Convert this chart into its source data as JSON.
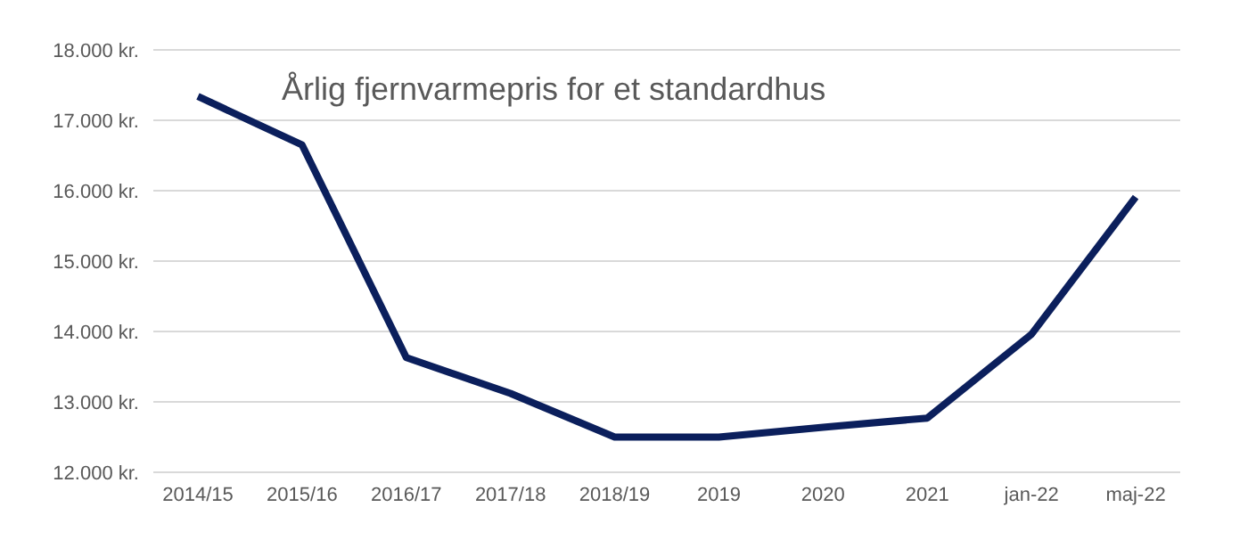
{
  "chart_data": {
    "type": "line",
    "title": "Årlig fjernvarmepris for et standardhus",
    "categories": [
      "2014/15",
      "2015/16",
      "2016/17",
      "2017/18",
      "2018/19",
      "2019",
      "2020",
      "2021",
      "jan-22",
      "maj-22"
    ],
    "series": [
      {
        "color": "#0b1f5c",
        "values": [
          17340,
          16650,
          13630,
          13120,
          12500,
          12500,
          12640,
          12770,
          13960,
          15910
        ]
      }
    ],
    "ylim": [
      12000,
      18000
    ],
    "yticks": [
      {
        "value": 12000,
        "label": "12.000 kr."
      },
      {
        "value": 13000,
        "label": "13.000 kr."
      },
      {
        "value": 14000,
        "label": "14.000 kr."
      },
      {
        "value": 15000,
        "label": "15.000 kr."
      },
      {
        "value": 16000,
        "label": "16.000 kr."
      },
      {
        "value": 17000,
        "label": "17.000 kr."
      },
      {
        "value": 18000,
        "label": "18.000 kr."
      }
    ],
    "grid": "y",
    "marker": "none",
    "line_style": "solid",
    "legend": false
  }
}
